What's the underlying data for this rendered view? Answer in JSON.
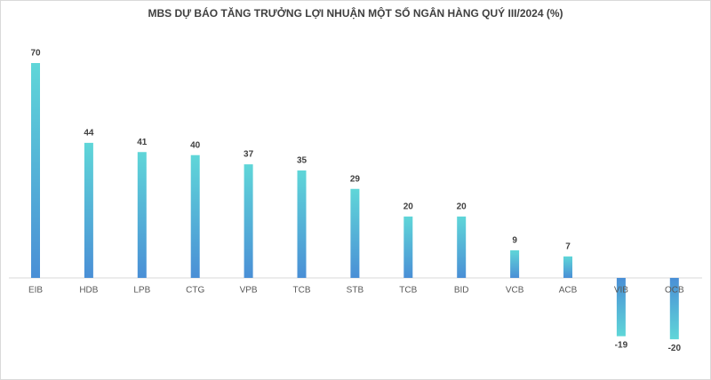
{
  "chart_data": {
    "type": "bar",
    "title": "MBS DỰ BÁO TĂNG TRƯỞNG LỢI NHUẬN MỘT SỐ NGÂN HÀNG QUÝ III/2024 (%)",
    "categories": [
      "EIB",
      "HDB",
      "LPB",
      "CTG",
      "VPB",
      "TCB",
      "STB",
      "TCB",
      "BID",
      "VCB",
      "ACB",
      "VIB",
      "OCB"
    ],
    "values": [
      70,
      44,
      41,
      40,
      37,
      35,
      29,
      20,
      20,
      9,
      7,
      -19,
      -20
    ],
    "color": "#5fd6d8"
  }
}
